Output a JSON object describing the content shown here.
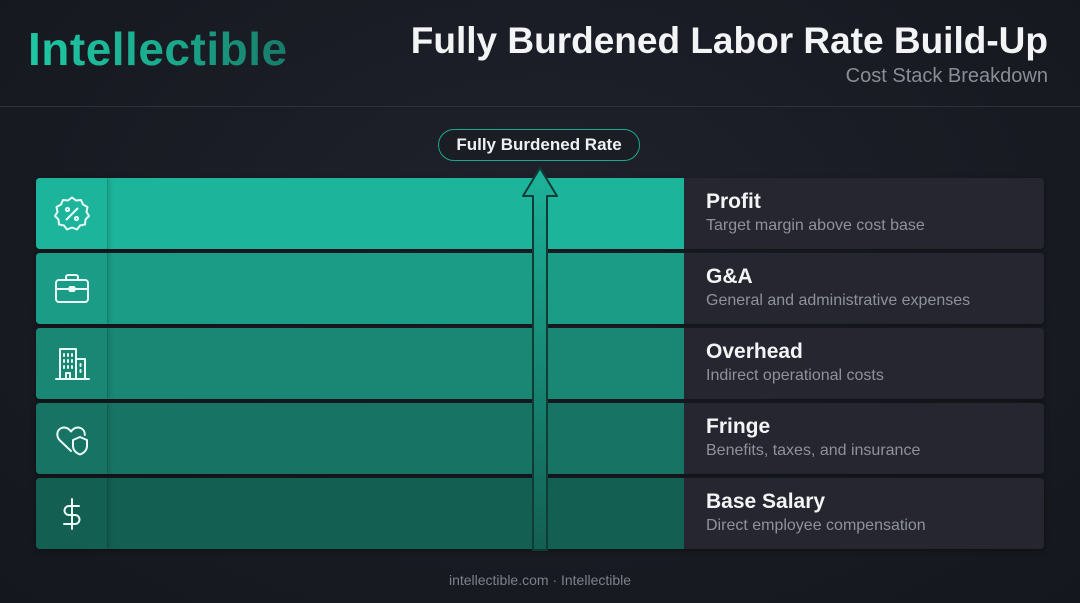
{
  "header": {
    "brand": "Intellectible",
    "title": "Fully Burdened Labor Rate Build-Up",
    "subtitle": "Cost Stack Breakdown"
  },
  "top_label": "Fully Burdened Rate",
  "layers": [
    {
      "title": "Profit",
      "description": "Target margin above cost base",
      "icon": "percent-badge-icon",
      "color": "#1cb49b"
    },
    {
      "title": "G&A",
      "description": "General and administrative expenses",
      "icon": "briefcase-icon",
      "color": "#1a9c86"
    },
    {
      "title": "Overhead",
      "description": "Indirect operational costs",
      "icon": "building-icon",
      "color": "#198774"
    },
    {
      "title": "Fringe",
      "description": "Benefits, taxes, and insurance",
      "icon": "heart-shield-icon",
      "color": "#177464"
    },
    {
      "title": "Base Salary",
      "description": "Direct employee compensation",
      "icon": "dollar-icon",
      "color": "#135f52"
    }
  ],
  "footer": "intellectible.com · Intellectible",
  "colors": {
    "accent": "#1cb49b",
    "background": "#181a22",
    "panel": "#25262f"
  }
}
